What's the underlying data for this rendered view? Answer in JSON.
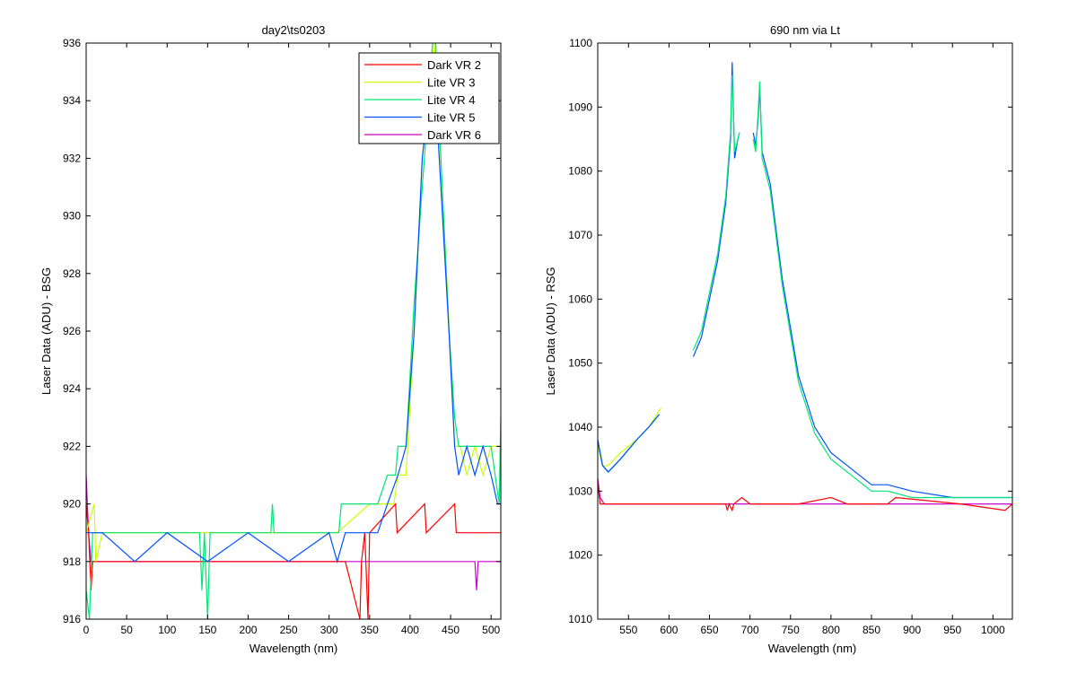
{
  "figure_background": "#ffffff",
  "chart_data": [
    {
      "type": "line",
      "title": "day2\\ts0203",
      "xlabel": "Wavelength (nm)",
      "ylabel": "Laser Data (ADU) - BSG",
      "xlim": [
        0,
        512
      ],
      "ylim": [
        916,
        936
      ],
      "xticks": [
        0,
        50,
        100,
        150,
        200,
        250,
        300,
        350,
        400,
        450,
        500
      ],
      "yticks": [
        916,
        918,
        920,
        922,
        924,
        926,
        928,
        930,
        932,
        934,
        936
      ],
      "grid": false,
      "legend_position": "top-right",
      "legend": [
        {
          "name": "Dark VR 2",
          "color": "#ff0000"
        },
        {
          "name": "Lite VR 3",
          "color": "#ccff00"
        },
        {
          "name": "Lite VR 4",
          "color": "#00e676"
        },
        {
          "name": "Lite VR 5",
          "color": "#0050ff"
        },
        {
          "name": "Dark VR 6",
          "color": "#cc00cc"
        }
      ],
      "series": [
        {
          "name": "Dark VR 6",
          "color": "#cc00cc",
          "points": [
            [
              0,
              921
            ],
            [
              3,
              919
            ],
            [
              6,
              918
            ],
            [
              480,
              918
            ],
            [
              482,
              917
            ],
            [
              484,
              918
            ],
            [
              512,
              918
            ]
          ]
        },
        {
          "name": "Dark VR 2",
          "color": "#ff0000",
          "points": [
            [
              0,
              920
            ],
            [
              3,
              919
            ],
            [
              6,
              917
            ],
            [
              8,
              918
            ],
            [
              320,
              918
            ],
            [
              338,
              916
            ],
            [
              340,
              918
            ],
            [
              344,
              919
            ],
            [
              348,
              916
            ],
            [
              350,
              919
            ],
            [
              382,
              920
            ],
            [
              384,
              919
            ],
            [
              418,
              920
            ],
            [
              420,
              919
            ],
            [
              455,
              920
            ],
            [
              457,
              919
            ],
            [
              512,
              919
            ]
          ]
        },
        {
          "name": "Lite VR 3",
          "color": "#ccff00",
          "points": [
            [
              0,
              919
            ],
            [
              10,
              920
            ],
            [
              12,
              918
            ],
            [
              20,
              919
            ],
            [
              310,
              919
            ],
            [
              350,
              920
            ],
            [
              380,
              920
            ],
            [
              385,
              921
            ],
            [
              395,
              921
            ],
            [
              405,
              926
            ],
            [
              415,
              932
            ],
            [
              425,
              935
            ],
            [
              430,
              936
            ],
            [
              436,
              933
            ],
            [
              445,
              928
            ],
            [
              455,
              922
            ],
            [
              462,
              922
            ],
            [
              470,
              921
            ],
            [
              480,
              922
            ],
            [
              490,
              921
            ],
            [
              500,
              922
            ],
            [
              512,
              922
            ]
          ]
        },
        {
          "name": "Lite VR 4",
          "color": "#00e676",
          "points": [
            [
              0,
              917
            ],
            [
              4,
              916
            ],
            [
              8,
              919
            ],
            [
              140,
              919
            ],
            [
              143,
              917
            ],
            [
              146,
              919
            ],
            [
              150,
              916
            ],
            [
              153,
              919
            ],
            [
              228,
              919
            ],
            [
              230,
              920
            ],
            [
              232,
              919
            ],
            [
              312,
              919
            ],
            [
              315,
              920
            ],
            [
              340,
              920
            ],
            [
              360,
              920
            ],
            [
              372,
              921
            ],
            [
              382,
              921
            ],
            [
              385,
              922
            ],
            [
              395,
              922
            ],
            [
              405,
              927
            ],
            [
              415,
              931
            ],
            [
              423,
              934
            ],
            [
              430,
              937
            ],
            [
              438,
              932
            ],
            [
              448,
              926
            ],
            [
              455,
              923
            ],
            [
              460,
              922
            ],
            [
              470,
              922
            ],
            [
              480,
              922
            ],
            [
              490,
              922
            ],
            [
              500,
              922
            ],
            [
              510,
              920
            ],
            [
              512,
              923
            ]
          ]
        },
        {
          "name": "Lite VR 5",
          "color": "#0050ff",
          "points": [
            [
              0,
              919
            ],
            [
              20,
              919
            ],
            [
              60,
              918
            ],
            [
              100,
              919
            ],
            [
              150,
              918
            ],
            [
              200,
              919
            ],
            [
              250,
              918
            ],
            [
              300,
              919
            ],
            [
              310,
              918
            ],
            [
              320,
              919
            ],
            [
              340,
              919
            ],
            [
              360,
              919
            ],
            [
              372,
              920
            ],
            [
              385,
              921
            ],
            [
              395,
              922
            ],
            [
              405,
              926
            ],
            [
              415,
              932
            ],
            [
              423,
              934
            ],
            [
              430,
              935
            ],
            [
              438,
              931
            ],
            [
              448,
              926
            ],
            [
              455,
              922
            ],
            [
              460,
              921
            ],
            [
              470,
              922
            ],
            [
              480,
              921
            ],
            [
              490,
              922
            ],
            [
              500,
              921
            ],
            [
              508,
              920
            ],
            [
              512,
              920
            ]
          ]
        }
      ]
    },
    {
      "type": "line",
      "title": "690 nm via Lt",
      "xlabel": "Wavelength (nm)",
      "ylabel": "Laser Data (ADU) - RSG",
      "xlim": [
        512,
        1024
      ],
      "ylim": [
        1010,
        1100
      ],
      "xticks": [
        550,
        600,
        650,
        700,
        750,
        800,
        850,
        900,
        950,
        1000
      ],
      "yticks": [
        1010,
        1020,
        1030,
        1040,
        1050,
        1060,
        1070,
        1080,
        1090,
        1100
      ],
      "grid": false,
      "series": [
        {
          "name": "Lite VR 3",
          "color": "#ccff00",
          "points": [
            [
              512,
              1037
            ],
            [
              518,
              1034
            ],
            [
              525,
              1034
            ],
            [
              540,
              1036
            ],
            [
              560,
              1038
            ],
            [
              575,
              1040
            ],
            [
              590,
              1043
            ]
          ]
        },
        {
          "name": "Lite VR 4",
          "color": "#00e676",
          "points": [
            [
              512,
              1038
            ],
            [
              518,
              1034
            ],
            [
              525,
              1033
            ],
            [
              540,
              1035
            ],
            [
              560,
              1038
            ],
            [
              575,
              1040
            ],
            [
              588,
              1042
            ]
          ]
        },
        {
          "name": "Lite VR 5",
          "color": "#0050ff",
          "points": [
            [
              512,
              1038
            ],
            [
              518,
              1034
            ],
            [
              525,
              1033
            ],
            [
              540,
              1035
            ],
            [
              560,
              1038
            ],
            [
              575,
              1040
            ],
            [
              588,
              1042
            ]
          ]
        },
        {
          "name": "Lite VR 5",
          "color": "#0050ff",
          "points": [
            [
              630,
              1051
            ],
            [
              640,
              1054
            ],
            [
              650,
              1060
            ],
            [
              660,
              1066
            ],
            [
              670,
              1075
            ],
            [
              676,
              1085
            ],
            [
              678,
              1097
            ],
            [
              681,
              1082
            ],
            [
              685,
              1085
            ],
            [
              687,
              1086
            ]
          ]
        },
        {
          "name": "Lite VR 4",
          "color": "#00e676",
          "points": [
            [
              630,
              1052
            ],
            [
              640,
              1055
            ],
            [
              650,
              1061
            ],
            [
              660,
              1067
            ],
            [
              670,
              1076
            ],
            [
              676,
              1086
            ],
            [
              678,
              1095
            ],
            [
              681,
              1083
            ],
            [
              685,
              1085
            ],
            [
              687,
              1086
            ]
          ]
        },
        {
          "name": "Lite VR 5",
          "color": "#0050ff",
          "points": [
            [
              704,
              1086
            ],
            [
              707,
              1084
            ],
            [
              710,
              1088
            ],
            [
              712,
              1093
            ],
            [
              715,
              1083
            ],
            [
              725,
              1078
            ],
            [
              740,
              1063
            ],
            [
              760,
              1048
            ],
            [
              780,
              1040
            ],
            [
              800,
              1036
            ],
            [
              820,
              1034
            ],
            [
              850,
              1031
            ],
            [
              870,
              1031
            ],
            [
              900,
              1030
            ],
            [
              950,
              1029
            ],
            [
              1024,
              1029
            ]
          ]
        },
        {
          "name": "Lite VR 4",
          "color": "#00e676",
          "points": [
            [
              704,
              1085
            ],
            [
              707,
              1083
            ],
            [
              710,
              1089
            ],
            [
              712,
              1094
            ],
            [
              715,
              1082
            ],
            [
              725,
              1077
            ],
            [
              740,
              1062
            ],
            [
              760,
              1047
            ],
            [
              780,
              1039
            ],
            [
              800,
              1035
            ],
            [
              820,
              1033
            ],
            [
              850,
              1030
            ],
            [
              870,
              1030
            ],
            [
              900,
              1029
            ],
            [
              950,
              1029
            ],
            [
              1024,
              1029
            ]
          ]
        },
        {
          "name": "Dark VR 6",
          "color": "#cc00cc",
          "points": [
            [
              512,
              1032
            ],
            [
              515,
              1029
            ],
            [
              520,
              1028
            ],
            [
              530,
              1028
            ],
            [
              600,
              1028
            ],
            [
              700,
              1028
            ],
            [
              800,
              1028
            ],
            [
              900,
              1028
            ],
            [
              1000,
              1028
            ],
            [
              1024,
              1028
            ]
          ]
        },
        {
          "name": "Dark VR 2",
          "color": "#ff0000",
          "points": [
            [
              512,
              1031
            ],
            [
              515,
              1028
            ],
            [
              670,
              1028
            ],
            [
              672,
              1027
            ],
            [
              674,
              1028
            ],
            [
              678,
              1027
            ],
            [
              680,
              1028
            ],
            [
              690,
              1029
            ],
            [
              700,
              1028
            ],
            [
              760,
              1028
            ],
            [
              800,
              1029
            ],
            [
              820,
              1028
            ],
            [
              870,
              1028
            ],
            [
              880,
              1029
            ],
            [
              960,
              1028
            ],
            [
              1015,
              1027
            ],
            [
              1024,
              1028
            ]
          ]
        }
      ]
    }
  ]
}
